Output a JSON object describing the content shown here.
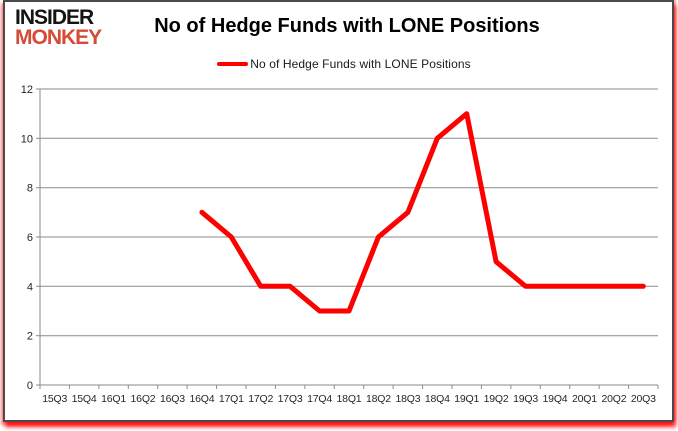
{
  "logo": {
    "line1": "INSIDER",
    "line2": "MONKEY"
  },
  "title": "No of Hedge Funds with LONE Positions",
  "legend": {
    "label": "No of Hedge Funds with LONE Positions"
  },
  "colors": {
    "line": "#fe0000",
    "logo_black": "#141414",
    "logo_red": "#d64a38",
    "grid": "#8a8a8a",
    "axis_text": "#262626",
    "frame_shadow": "#ff0000"
  },
  "chart_data": {
    "type": "line",
    "title": "No of Hedge Funds with LONE Positions",
    "categories": [
      "15Q3",
      "15Q4",
      "16Q1",
      "16Q2",
      "16Q3",
      "16Q4",
      "17Q1",
      "17Q2",
      "17Q3",
      "17Q4",
      "18Q1",
      "18Q2",
      "18Q3",
      "18Q4",
      "19Q1",
      "19Q2",
      "19Q3",
      "19Q4",
      "20Q1",
      "20Q2",
      "20Q3"
    ],
    "series": [
      {
        "name": "No of Hedge Funds with LONE Positions",
        "color": "#fe0000",
        "values": [
          null,
          null,
          null,
          null,
          null,
          7,
          6,
          4,
          4,
          3,
          3,
          6,
          7,
          10,
          11,
          5,
          4,
          4,
          4,
          4,
          4
        ]
      }
    ],
    "xlabel": "",
    "ylabel": "",
    "ylim": [
      0,
      12
    ],
    "yticks": [
      0,
      2,
      4,
      6,
      8,
      10,
      12
    ],
    "grid": true,
    "legend_position": "top"
  }
}
